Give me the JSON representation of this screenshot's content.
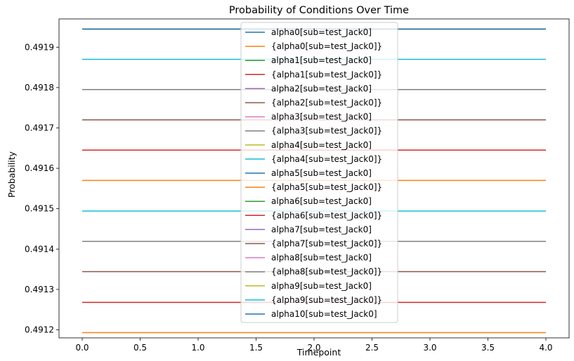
{
  "chart_data": {
    "type": "line",
    "title": "Probability of Conditions Over Time",
    "xlabel": "Timepoint",
    "ylabel": "Probability",
    "xlim": [
      -0.2,
      4.2
    ],
    "ylim": [
      0.49118,
      0.49197
    ],
    "x_ticks": [
      "0.0",
      "0.5",
      "1.0",
      "1.5",
      "2.0",
      "2.5",
      "3.0",
      "3.5",
      "4.0"
    ],
    "y_ticks": [
      "0.4912",
      "0.4913",
      "0.4914",
      "0.4915",
      "0.4916",
      "0.4917",
      "0.4918",
      "0.4919"
    ],
    "grid": false,
    "legend_position": "top-center",
    "x": [
      0,
      1,
      2,
      3,
      4
    ],
    "series": [
      {
        "name": "alpha0[sub=test_Jack0]",
        "color": "#1f77b4",
        "values": [
          0.491945,
          0.491945,
          0.491945,
          0.491945,
          0.491945
        ]
      },
      {
        "name": "{alpha0[sub=test_Jack0]}",
        "color": "#ff7f0e",
        "values": [
          0.491193,
          0.491193,
          0.491193,
          0.491193,
          0.491193
        ]
      },
      {
        "name": "alpha1[sub=test_Jack0]",
        "color": "#2ca02c",
        "values": [
          0.491945,
          0.491945,
          0.491945,
          0.491945,
          0.491945
        ]
      },
      {
        "name": "{alpha1[sub=test_Jack0]}",
        "color": "#d62728",
        "values": [
          0.491268,
          0.491268,
          0.491268,
          0.491268,
          0.491268
        ]
      },
      {
        "name": "alpha2[sub=test_Jack0]",
        "color": "#9467bd",
        "values": [
          0.491945,
          0.491945,
          0.491945,
          0.491945,
          0.491945
        ]
      },
      {
        "name": "{alpha2[sub=test_Jack0]}",
        "color": "#8c564b",
        "values": [
          0.491344,
          0.491344,
          0.491344,
          0.491344,
          0.491344
        ]
      },
      {
        "name": "alpha3[sub=test_Jack0]",
        "color": "#e377c2",
        "values": [
          0.491945,
          0.491945,
          0.491945,
          0.491945,
          0.491945
        ]
      },
      {
        "name": "{alpha3[sub=test_Jack0]}",
        "color": "#7f7f7f",
        "values": [
          0.491419,
          0.491419,
          0.491419,
          0.491419,
          0.491419
        ]
      },
      {
        "name": "alpha4[sub=test_Jack0]",
        "color": "#bcbd22",
        "values": [
          0.491945,
          0.491945,
          0.491945,
          0.491945,
          0.491945
        ]
      },
      {
        "name": "{alpha4[sub=test_Jack0]}",
        "color": "#17becf",
        "values": [
          0.491494,
          0.491494,
          0.491494,
          0.491494,
          0.491494
        ]
      },
      {
        "name": "alpha5[sub=test_Jack0]",
        "color": "#1f77b4",
        "values": [
          0.491945,
          0.491945,
          0.491945,
          0.491945,
          0.491945
        ]
      },
      {
        "name": "{alpha5[sub=test_Jack0]}",
        "color": "#ff7f0e",
        "values": [
          0.49157,
          0.49157,
          0.49157,
          0.49157,
          0.49157
        ]
      },
      {
        "name": "alpha6[sub=test_Jack0]",
        "color": "#2ca02c",
        "values": [
          0.491945,
          0.491945,
          0.491945,
          0.491945,
          0.491945
        ]
      },
      {
        "name": "{alpha6[sub=test_Jack0]}",
        "color": "#d62728",
        "values": [
          0.491645,
          0.491645,
          0.491645,
          0.491645,
          0.491645
        ]
      },
      {
        "name": "alpha7[sub=test_Jack0]",
        "color": "#9467bd",
        "values": [
          0.491945,
          0.491945,
          0.491945,
          0.491945,
          0.491945
        ]
      },
      {
        "name": "{alpha7[sub=test_Jack0]}",
        "color": "#8c564b",
        "values": [
          0.49172,
          0.49172,
          0.49172,
          0.49172,
          0.49172
        ]
      },
      {
        "name": "alpha8[sub=test_Jack0]",
        "color": "#e377c2",
        "values": [
          0.491945,
          0.491945,
          0.491945,
          0.491945,
          0.491945
        ]
      },
      {
        "name": "{alpha8[sub=test_Jack0]}",
        "color": "#7f7f7f",
        "values": [
          0.491795,
          0.491795,
          0.491795,
          0.491795,
          0.491795
        ]
      },
      {
        "name": "alpha9[sub=test_Jack0]",
        "color": "#bcbd22",
        "values": [
          0.491945,
          0.491945,
          0.491945,
          0.491945,
          0.491945
        ]
      },
      {
        "name": "{alpha9[sub=test_Jack0]}",
        "color": "#17becf",
        "values": [
          0.49187,
          0.49187,
          0.49187,
          0.49187,
          0.49187
        ]
      },
      {
        "name": "alpha10[sub=test_Jack0]",
        "color": "#1f77b4",
        "values": [
          0.491945,
          0.491945,
          0.491945,
          0.491945,
          0.491945
        ]
      }
    ]
  }
}
